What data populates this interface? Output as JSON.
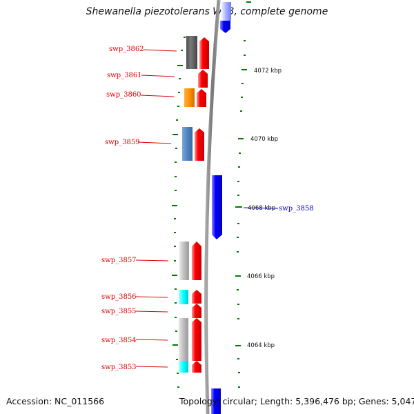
{
  "header": {
    "title": "Shewanella piezotolerans WP3, complete genome"
  },
  "footer": {
    "accession": "Accession: NC_011566",
    "stats": "Topology: circular; Length: 5,396,476 bp; Genes: 5,047"
  },
  "colors": {
    "forward": "#ff0000",
    "reverse": "#0000ff",
    "backbone": "#808080",
    "tick": "#007700"
  },
  "kbp_labels": [
    "4072 kbp",
    "4070 kbp",
    "4068 kbp",
    "4066 kbp",
    "4064 kbp"
  ],
  "gene_labels": [
    {
      "name": "swp_3862",
      "strand": "forward"
    },
    {
      "name": "swp_3861",
      "strand": "forward"
    },
    {
      "name": "swp_3860",
      "strand": "forward"
    },
    {
      "name": "swp_3859",
      "strand": "forward"
    },
    {
      "name": "swp_3858",
      "strand": "reverse"
    },
    {
      "name": "swp_3857",
      "strand": "forward"
    },
    {
      "name": "swp_3856",
      "strand": "forward"
    },
    {
      "name": "swp_3855",
      "strand": "forward"
    },
    {
      "name": "swp_3854",
      "strand": "forward"
    },
    {
      "name": "swp_3853",
      "strand": "forward"
    }
  ]
}
